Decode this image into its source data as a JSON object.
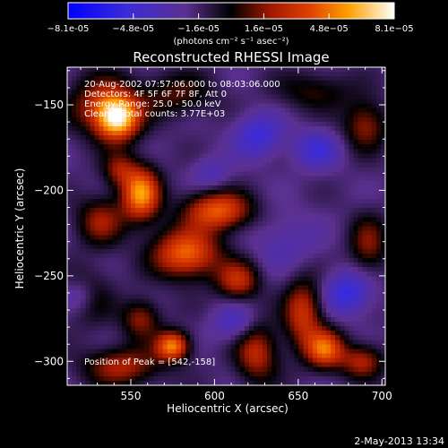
{
  "chart_data": {
    "type": "heatmap",
    "title": "Reconstructed RHESSI Image",
    "xlabel": "Heliocentric X (arcsec)",
    "ylabel": "Heliocentric Y (arcsec)",
    "xlim": [
      512,
      702
    ],
    "ylim": [
      -314,
      -128
    ],
    "x_ticks": [
      550,
      600,
      650,
      700
    ],
    "y_ticks": [
      -150,
      -200,
      -250,
      -300
    ],
    "colorbar": {
      "range": [
        -8.1e-05,
        8.1e-05
      ],
      "tick_labels": [
        "-8.1e-05",
        "-4.8e-05",
        "-1.6e-05",
        "1.6e-05",
        "4.8e-05",
        "8.1e-05"
      ],
      "units": "(photons cm⁻² s⁻¹ asec⁻²)"
    },
    "annotations": [
      "20-Aug-2002 07:57:06.000 to 08:03:06.000",
      "Detectors: 4F 5F 6F 7F 8F, Att 0",
      "Energy Range: 25.0 - 50.0 keV",
      "Clean    Total counts: 3.77E+03"
    ],
    "peak_label": "Position of Peak = [542,-158]",
    "peak_position": [
      542,
      -158
    ],
    "sources": [
      {
        "x": 542,
        "y": -158,
        "sx": 9,
        "sy": 9,
        "amp": 1.0
      },
      {
        "x": 533,
        "y": -150,
        "sx": 14,
        "sy": 12,
        "amp": 0.5
      },
      {
        "x": 556,
        "y": -202,
        "sx": 8,
        "sy": 11,
        "amp": 0.9
      },
      {
        "x": 532,
        "y": -218,
        "sx": 10,
        "sy": 10,
        "amp": 0.45
      },
      {
        "x": 543,
        "y": -188,
        "sx": 7,
        "sy": 7,
        "amp": 0.4
      },
      {
        "x": 602,
        "y": -212,
        "sx": 14,
        "sy": 8,
        "amp": 0.75
      },
      {
        "x": 583,
        "y": -237,
        "sx": 14,
        "sy": 10,
        "amp": 0.8
      },
      {
        "x": 614,
        "y": -253,
        "sx": 9,
        "sy": 8,
        "amp": 0.55
      },
      {
        "x": 575,
        "y": -291,
        "sx": 7,
        "sy": 6,
        "amp": 0.85
      },
      {
        "x": 556,
        "y": -275,
        "sx": 8,
        "sy": 8,
        "amp": 0.45
      },
      {
        "x": 545,
        "y": -303,
        "sx": 16,
        "sy": 8,
        "amp": 0.5
      },
      {
        "x": 625,
        "y": -295,
        "sx": 9,
        "sy": 12,
        "amp": 0.55
      },
      {
        "x": 653,
        "y": -272,
        "sx": 8,
        "sy": 14,
        "amp": 0.6
      },
      {
        "x": 666,
        "y": -293,
        "sx": 8,
        "sy": 8,
        "amp": 0.75
      },
      {
        "x": 688,
        "y": -300,
        "sx": 9,
        "sy": 7,
        "amp": 0.5
      },
      {
        "x": 692,
        "y": -232,
        "sx": 8,
        "sy": 12,
        "amp": 0.4
      },
      {
        "x": 690,
        "y": -162,
        "sx": 9,
        "sy": 10,
        "amp": 0.45
      },
      {
        "x": 577,
        "y": -144,
        "sx": 16,
        "sy": 9,
        "amp": 0.32
      },
      {
        "x": 660,
        "y": -142,
        "sx": 16,
        "sy": 8,
        "amp": 0.28
      },
      {
        "x": 525,
        "y": -262,
        "sx": 10,
        "sy": 12,
        "amp": 0.28
      },
      {
        "x": 626,
        "y": -168,
        "sx": 10,
        "sy": 9,
        "amp": -0.4
      },
      {
        "x": 661,
        "y": -176,
        "sx": 10,
        "sy": 8,
        "amp": -0.35
      },
      {
        "x": 680,
        "y": -260,
        "sx": 10,
        "sy": 9,
        "amp": -0.45
      },
      {
        "x": 612,
        "y": -278,
        "sx": 9,
        "sy": 8,
        "amp": -0.3
      },
      {
        "x": 520,
        "y": -262,
        "sx": 7,
        "sy": 7,
        "amp": -0.3
      },
      {
        "x": 642,
        "y": -230,
        "sx": 14,
        "sy": 12,
        "amp": -0.2
      },
      {
        "x": 598,
        "y": -190,
        "sx": 8,
        "sy": 7,
        "amp": -0.22
      }
    ],
    "background_level": 0.13
  },
  "footer": {
    "timestamp": "2-May-2013 13:34"
  }
}
